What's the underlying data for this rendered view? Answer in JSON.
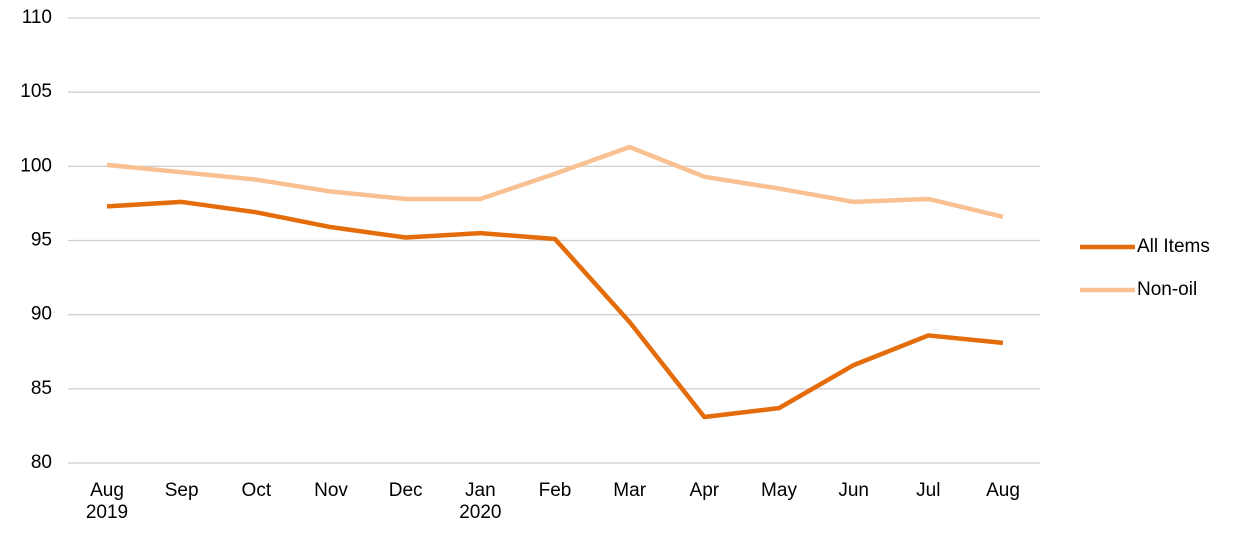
{
  "chart_data": {
    "type": "line",
    "categories": [
      "Aug 2019",
      "Sep",
      "Oct",
      "Nov",
      "Dec",
      "Jan 2020",
      "Feb",
      "Mar",
      "Apr",
      "May",
      "Jun",
      "Jul",
      "Aug"
    ],
    "series": [
      {
        "name": "All Items",
        "color": "#e46c0a",
        "values": [
          97.3,
          97.6,
          96.9,
          95.9,
          95.2,
          95.5,
          95.1,
          89.5,
          83.1,
          83.7,
          86.6,
          88.6,
          88.1
        ]
      },
      {
        "name": "Non-oil",
        "color": "#f9c092",
        "values": [
          100.1,
          99.6,
          99.1,
          98.3,
          97.8,
          97.8,
          99.5,
          101.3,
          99.3,
          98.5,
          97.6,
          97.8,
          96.6
        ]
      }
    ],
    "ylim": [
      80,
      110
    ],
    "yticks": [
      80,
      85,
      90,
      95,
      100,
      105,
      110
    ],
    "grid": true,
    "legend": "right"
  }
}
